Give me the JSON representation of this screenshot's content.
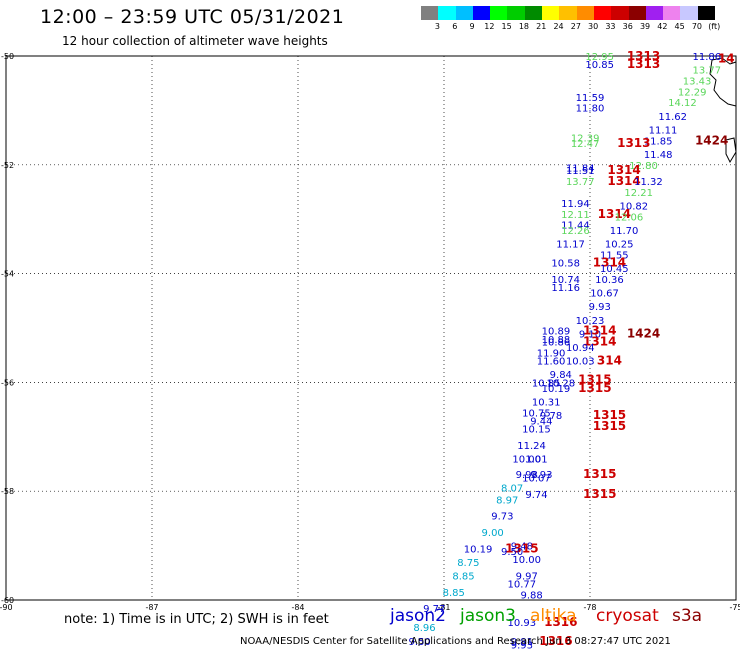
{
  "header": {
    "title": "12:00 – 23:59 UTC 05/31/2021",
    "subtitle": "12 hour collection of altimeter wave heights"
  },
  "colorbar": {
    "colors": [
      "#808080",
      "#00ffff",
      "#00bfff",
      "#0000ff",
      "#00ff00",
      "#00cd00",
      "#008b00",
      "#ffff00",
      "#ffc000",
      "#ff8c00",
      "#ff0000",
      "#cd0000",
      "#8b0000",
      "#a020f0",
      "#ee82ee",
      "#c8c8ff",
      "#000000"
    ],
    "labels": [
      "3",
      "6",
      "9",
      "12",
      "15",
      "18",
      "21",
      "24",
      "27",
      "30",
      "33",
      "36",
      "39",
      "42",
      "45",
      "70",
      "(ft)"
    ]
  },
  "axes": {
    "x_ticks": [
      "-90",
      "-87",
      "-84",
      "-81",
      "-78",
      "-75"
    ],
    "y_ticks": [
      "-50",
      "-52",
      "-54",
      "-56",
      "-58",
      "-60"
    ]
  },
  "observations": [
    {
      "lon": -77.8,
      "lat": -50.0,
      "label": "12.95",
      "color": "#5ad65a"
    },
    {
      "lon": -76.9,
      "lat": -50.0,
      "label": "1313",
      "color": "#cc0000",
      "bold": true
    },
    {
      "lon": -77.8,
      "lat": -50.15,
      "label": "10.85",
      "color": "#0000cc"
    },
    {
      "lon": -76.9,
      "lat": -50.15,
      "label": "1313",
      "color": "#cc0000",
      "bold": true
    },
    {
      "lon": -75.6,
      "lat": -50.0,
      "label": "11.86",
      "color": "#0000cc"
    },
    {
      "lon": -75.6,
      "lat": -50.25,
      "label": "13.77",
      "color": "#5ad65a"
    },
    {
      "lon": -75.8,
      "lat": -50.45,
      "label": "13.43",
      "color": "#5ad65a"
    },
    {
      "lon": -75.9,
      "lat": -50.65,
      "label": "12.29",
      "color": "#5ad65a"
    },
    {
      "lon": -76.1,
      "lat": -50.85,
      "label": "14.12",
      "color": "#5ad65a"
    },
    {
      "lon": -76.3,
      "lat": -51.1,
      "label": "11.62",
      "color": "#0000cc"
    },
    {
      "lon": -76.5,
      "lat": -51.35,
      "label": "11.11",
      "color": "#0000cc"
    },
    {
      "lon": -76.6,
      "lat": -51.55,
      "label": "11.85",
      "color": "#0000cc"
    },
    {
      "lon": -75.5,
      "lat": -51.55,
      "label": "1424",
      "color": "#8b0000",
      "bold": true
    },
    {
      "lon": -76.6,
      "lat": -51.8,
      "label": "11.48",
      "color": "#0000cc"
    },
    {
      "lon": -78.0,
      "lat": -50.75,
      "label": "11.59",
      "color": "#0000cc"
    },
    {
      "lon": -78.0,
      "lat": -50.95,
      "label": "11.80",
      "color": "#0000cc"
    },
    {
      "lon": -78.1,
      "lat": -51.5,
      "label": "12.39",
      "color": "#5ad65a"
    },
    {
      "lon": -78.1,
      "lat": -51.6,
      "label": "12.47",
      "color": "#5ad65a"
    },
    {
      "lon": -77.1,
      "lat": -51.6,
      "label": "1313",
      "color": "#cc0000",
      "bold": true
    },
    {
      "lon": -76.9,
      "lat": -52.0,
      "label": "12.80",
      "color": "#5ad65a"
    },
    {
      "lon": -78.2,
      "lat": -52.05,
      "label": "11.84",
      "color": "#0000cc"
    },
    {
      "lon": -78.2,
      "lat": -52.1,
      "label": "11.51",
      "color": "#0000cc"
    },
    {
      "lon": -77.3,
      "lat": -52.1,
      "label": "1314",
      "color": "#cc0000",
      "bold": true
    },
    {
      "lon": -78.2,
      "lat": -52.3,
      "label": "13.77",
      "color": "#5ad65a"
    },
    {
      "lon": -77.3,
      "lat": -52.3,
      "label": "1314",
      "color": "#cc0000",
      "bold": true
    },
    {
      "lon": -76.8,
      "lat": -52.3,
      "label": "11.32",
      "color": "#0000cc"
    },
    {
      "lon": -77.0,
      "lat": -52.5,
      "label": "12.21",
      "color": "#5ad65a"
    },
    {
      "lon": -78.3,
      "lat": -52.7,
      "label": "11.94",
      "color": "#0000cc"
    },
    {
      "lon": -77.1,
      "lat": -52.75,
      "label": "10.82",
      "color": "#0000cc"
    },
    {
      "lon": -78.3,
      "lat": -52.9,
      "label": "12.11",
      "color": "#5ad65a"
    },
    {
      "lon": -77.5,
      "lat": -52.9,
      "label": "1314",
      "color": "#cc0000",
      "bold": true
    },
    {
      "lon": -77.2,
      "lat": -52.95,
      "label": "12.06",
      "color": "#5ad65a"
    },
    {
      "lon": -78.3,
      "lat": -53.1,
      "label": "11.44",
      "color": "#0000cc"
    },
    {
      "lon": -78.3,
      "lat": -53.2,
      "label": "12.26",
      "color": "#5ad65a"
    },
    {
      "lon": -77.3,
      "lat": -53.2,
      "label": "11.70",
      "color": "#0000cc"
    },
    {
      "lon": -78.4,
      "lat": -53.45,
      "label": "11.17",
      "color": "#0000cc"
    },
    {
      "lon": -77.4,
      "lat": -53.45,
      "label": "10.25",
      "color": "#0000cc"
    },
    {
      "lon": -77.5,
      "lat": -53.65,
      "label": "11.55",
      "color": "#0000cc"
    },
    {
      "lon": -78.5,
      "lat": -53.8,
      "label": "10.58",
      "color": "#0000cc"
    },
    {
      "lon": -77.6,
      "lat": -53.8,
      "label": "1314",
      "color": "#cc0000",
      "bold": true
    },
    {
      "lon": -77.5,
      "lat": -53.9,
      "label": "10.45",
      "color": "#0000cc"
    },
    {
      "lon": -78.5,
      "lat": -54.1,
      "label": "10.74",
      "color": "#0000cc"
    },
    {
      "lon": -77.6,
      "lat": -54.1,
      "label": "10.36",
      "color": "#0000cc"
    },
    {
      "lon": -78.5,
      "lat": -54.25,
      "label": "11.16",
      "color": "#0000cc"
    },
    {
      "lon": -77.7,
      "lat": -54.35,
      "label": "10.67",
      "color": "#0000cc"
    },
    {
      "lon": -77.8,
      "lat": -54.6,
      "label": "9.93",
      "color": "#0000cc"
    },
    {
      "lon": -78.0,
      "lat": -54.85,
      "label": "10.23",
      "color": "#0000cc"
    },
    {
      "lon": -78.7,
      "lat": -55.05,
      "label": "10.89",
      "color": "#0000cc"
    },
    {
      "lon": -78.0,
      "lat": -55.1,
      "label": "9.10",
      "color": "#0000cc"
    },
    {
      "lon": -77.8,
      "lat": -55.05,
      "label": "1314",
      "color": "#cc0000",
      "bold": true
    },
    {
      "lon": -76.9,
      "lat": -55.1,
      "label": "1424",
      "color": "#8b0000",
      "bold": true
    },
    {
      "lon": -78.7,
      "lat": -55.2,
      "label": "10.88",
      "color": "#0000cc"
    },
    {
      "lon": -78.7,
      "lat": -55.25,
      "label": "10.86",
      "color": "#0000cc"
    },
    {
      "lon": -77.8,
      "lat": -55.25,
      "label": "1314",
      "color": "#cc0000",
      "bold": true
    },
    {
      "lon": -78.2,
      "lat": -55.35,
      "label": "10.94",
      "color": "#0000cc"
    },
    {
      "lon": -78.8,
      "lat": -55.45,
      "label": "11.90",
      "color": "#0000cc"
    },
    {
      "lon": -78.8,
      "lat": -55.6,
      "label": "11.60",
      "color": "#0000cc"
    },
    {
      "lon": -78.2,
      "lat": -55.6,
      "label": "10.03",
      "color": "#0000cc"
    },
    {
      "lon": -77.6,
      "lat": -55.6,
      "label": "314",
      "color": "#cc0000",
      "bold": true
    },
    {
      "lon": -78.6,
      "lat": -55.85,
      "label": "9.84",
      "color": "#0000cc"
    },
    {
      "lon": -78.9,
      "lat": -56.0,
      "label": "10.85",
      "color": "#0000cc"
    },
    {
      "lon": -78.6,
      "lat": -56.0,
      "label": "10.28",
      "color": "#0000cc"
    },
    {
      "lon": -77.9,
      "lat": -55.95,
      "label": "1315",
      "color": "#cc0000",
      "bold": true
    },
    {
      "lon": -78.7,
      "lat": -56.1,
      "label": "10.19",
      "color": "#0000cc"
    },
    {
      "lon": -77.9,
      "lat": -56.1,
      "label": "1315",
      "color": "#cc0000",
      "bold": true
    },
    {
      "lon": -78.9,
      "lat": -56.35,
      "label": "10.31",
      "color": "#0000cc"
    },
    {
      "lon": -79.1,
      "lat": -56.55,
      "label": "10.75",
      "color": "#0000cc"
    },
    {
      "lon": -78.8,
      "lat": -56.6,
      "label": "9.78",
      "color": "#0000cc"
    },
    {
      "lon": -77.6,
      "lat": -56.6,
      "label": "1315",
      "color": "#cc0000",
      "bold": true
    },
    {
      "lon": -79.0,
      "lat": -56.7,
      "label": "9.44",
      "color": "#0000cc"
    },
    {
      "lon": -77.6,
      "lat": -56.8,
      "label": "1315",
      "color": "#cc0000",
      "bold": true
    },
    {
      "lon": -79.1,
      "lat": -56.85,
      "label": "10.15",
      "color": "#0000cc"
    },
    {
      "lon": -79.2,
      "lat": -57.15,
      "label": "11.24",
      "color": "#0000cc"
    },
    {
      "lon": -79.3,
      "lat": -57.4,
      "label": "10.00",
      "color": "#0000cc"
    },
    {
      "lon": -79.1,
      "lat": -57.4,
      "label": "1.01",
      "color": "#0000cc"
    },
    {
      "lon": -79.3,
      "lat": -57.68,
      "label": "9.98",
      "color": "#0000cc"
    },
    {
      "lon": -79.0,
      "lat": -57.68,
      "label": "9.93",
      "color": "#0000cc"
    },
    {
      "lon": -79.1,
      "lat": -57.75,
      "label": "10.07",
      "color": "#0000cc"
    },
    {
      "lon": -77.8,
      "lat": -57.68,
      "label": "1315",
      "color": "#cc0000",
      "bold": true
    },
    {
      "lon": -79.6,
      "lat": -57.93,
      "label": "8.07",
      "color": "#00a8cc"
    },
    {
      "lon": -79.1,
      "lat": -58.05,
      "label": "9.74",
      "color": "#0000cc"
    },
    {
      "lon": -77.8,
      "lat": -58.05,
      "label": "1315",
      "color": "#cc0000",
      "bold": true
    },
    {
      "lon": -79.7,
      "lat": -58.15,
      "label": "8.97",
      "color": "#00a8cc"
    },
    {
      "lon": -79.8,
      "lat": -58.45,
      "label": "9.73",
      "color": "#0000cc"
    },
    {
      "lon": -80.0,
      "lat": -58.75,
      "label": "9.00",
      "color": "#00a8cc"
    },
    {
      "lon": -79.4,
      "lat": -59.0,
      "label": "9.48",
      "color": "#0000cc"
    },
    {
      "lon": -80.3,
      "lat": -59.05,
      "label": "10.19",
      "color": "#0000cc"
    },
    {
      "lon": -79.4,
      "lat": -59.05,
      "label": "1315",
      "color": "#cc0000",
      "bold": true
    },
    {
      "lon": -79.6,
      "lat": -59.1,
      "label": "9.50",
      "color": "#0000cc"
    },
    {
      "lon": -79.3,
      "lat": -59.25,
      "label": "10.00",
      "color": "#0000cc"
    },
    {
      "lon": -80.5,
      "lat": -59.3,
      "label": "8.75",
      "color": "#00a8cc"
    },
    {
      "lon": -79.3,
      "lat": -59.55,
      "label": "9.97",
      "color": "#0000cc"
    },
    {
      "lon": -80.6,
      "lat": -59.55,
      "label": "8.85",
      "color": "#00a8cc"
    },
    {
      "lon": -79.4,
      "lat": -59.7,
      "label": "10.77",
      "color": "#0000cc"
    },
    {
      "lon": -80.8,
      "lat": -59.85,
      "label": "8.85",
      "color": "#00a8cc"
    },
    {
      "lon": -79.2,
      "lat": -59.9,
      "label": "9.88",
      "color": "#0000cc"
    },
    {
      "lon": -81.2,
      "lat": -60.15,
      "label": "9.77",
      "color": "#0000cc"
    },
    {
      "lon": -79.4,
      "lat": -60.4,
      "label": "10.93",
      "color": "#0000cc"
    },
    {
      "lon": -78.6,
      "lat": -60.4,
      "label": "1316",
      "color": "#cc0000",
      "bold": true
    },
    {
      "lon": -81.4,
      "lat": -60.5,
      "label": "8.96",
      "color": "#00a8cc"
    },
    {
      "lon": -81.5,
      "lat": -60.75,
      "label": "9.50",
      "color": "#0000cc"
    },
    {
      "lon": -79.4,
      "lat": -60.75,
      "label": "9.81",
      "color": "#0000cc"
    },
    {
      "lon": -79.4,
      "lat": -60.82,
      "label": "9.93",
      "color": "#0000cc"
    },
    {
      "lon": -78.7,
      "lat": -60.75,
      "label": "1316",
      "color": "#cc0000",
      "bold": true
    },
    {
      "lon": -75.2,
      "lat": -50.05,
      "label": "14",
      "color": "#cc0000",
      "bold": true
    }
  ],
  "footer": {
    "note": "note:  1) Time is in UTC;  2) SWH is in feet",
    "legend": [
      {
        "label": "jason2",
        "color": "#0000cc"
      },
      {
        "label": "jason3",
        "color": "#00a000"
      },
      {
        "label": "altika",
        "color": "#ff8c00"
      },
      {
        "label": "cryosat",
        "color": "#cc0000"
      },
      {
        "label": "s3a",
        "color": "#8b0000"
      }
    ],
    "credit": "NOAA/NESDIS Center for Satellite Applications and Research    Jun  3 08:27:47 UTC 2021"
  }
}
